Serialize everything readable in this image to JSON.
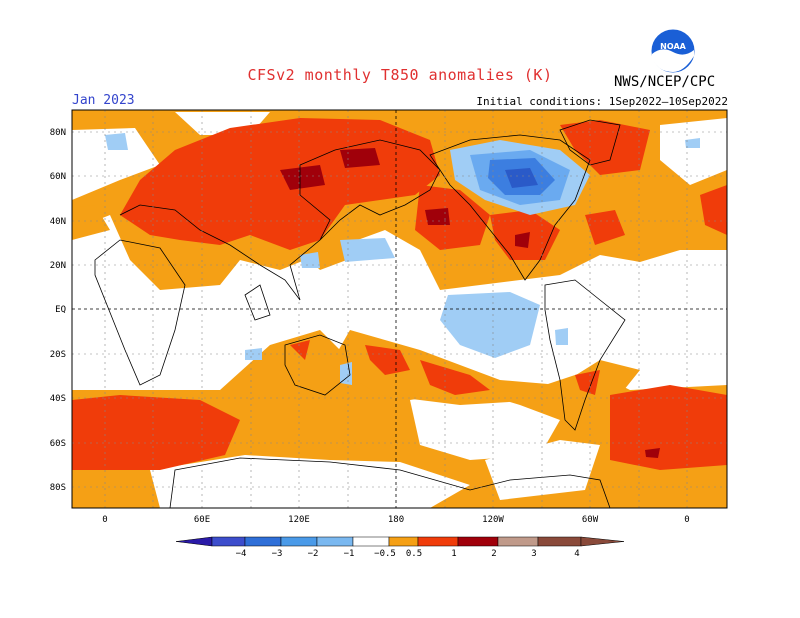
{
  "header": {
    "title": "CFSv2 monthly T850 anomalies (K)",
    "month": "Jan 2023",
    "initial_conditions": "Initial conditions: 1Sep2022–10Sep2022",
    "agency": "NWS/NCEP/CPC",
    "logo_text": "NOAA"
  },
  "axes": {
    "lat_labels": [
      "80N",
      "60N",
      "40N",
      "20N",
      "EQ",
      "20S",
      "40S",
      "60S",
      "80S"
    ],
    "lon_labels": [
      "0",
      "60E",
      "120E",
      "180",
      "120W",
      "60W",
      "0"
    ]
  },
  "colorbar": {
    "levels": [
      "−4",
      "−3",
      "−2",
      "−1",
      "−0.5",
      "0.5",
      "1",
      "2",
      "3",
      "4"
    ],
    "colors": [
      "#2a1aa8",
      "#3c4dcc",
      "#2f6fd8",
      "#4a9ae8",
      "#7ab8f0",
      "#ffffff",
      "#f5a015",
      "#f03c0a",
      "#a0000a",
      "#c09a8a",
      "#8a4a3a"
    ]
  },
  "map_colors": {
    "neutral": "#ffffff",
    "warm1": "#f5a015",
    "warm2": "#f03c0a",
    "warm3": "#a0000a",
    "cool1": "#a0cdf5",
    "cool2": "#6aaaf0",
    "cool3": "#3c7ee0",
    "cool4": "#2a5ac8"
  }
}
